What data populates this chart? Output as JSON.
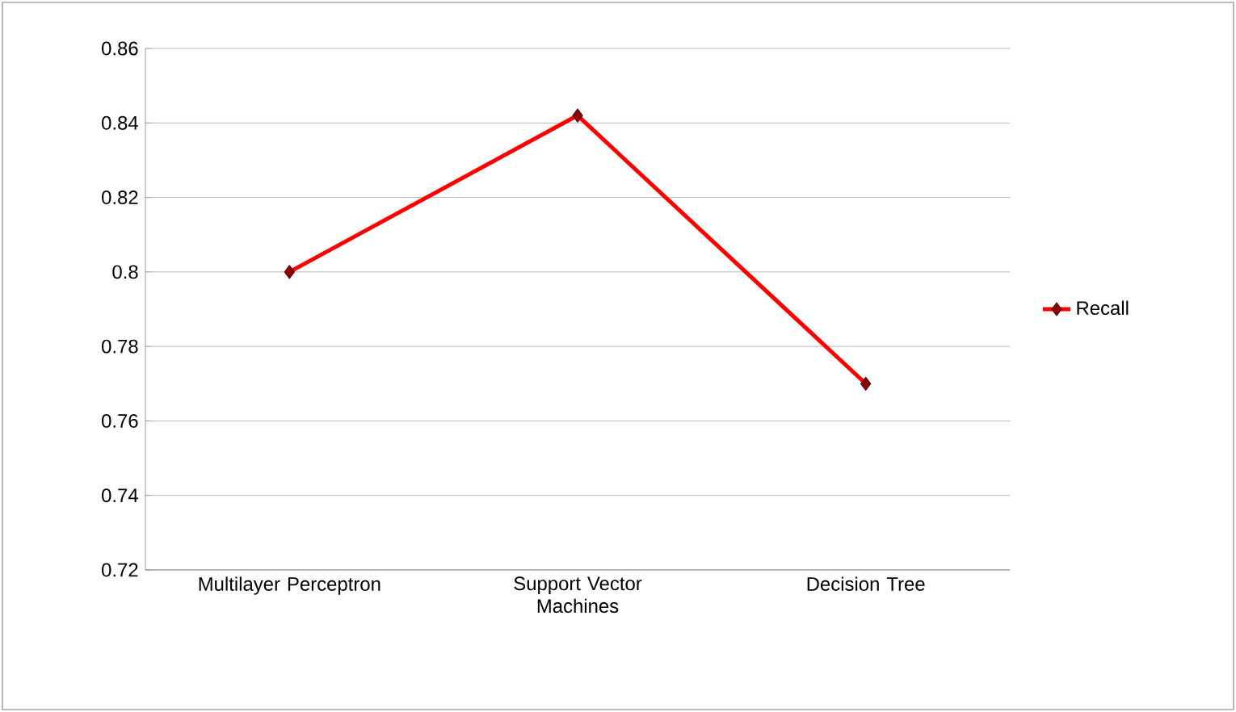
{
  "chart_data": {
    "type": "line",
    "categories": [
      "Multilayer Perceptron",
      "Support Vector Machines",
      "Decision Tree"
    ],
    "series": [
      {
        "name": "Recall",
        "color": "#ff0000",
        "values": [
          0.8,
          0.842,
          0.77
        ]
      }
    ],
    "ylim": [
      0.72,
      0.86
    ],
    "yticks": [
      0.72,
      0.74,
      0.76,
      0.78,
      0.8,
      0.82,
      0.84,
      0.86
    ],
    "grid": "y",
    "legend": "right",
    "marker": "diamond",
    "line_style": "solid"
  }
}
